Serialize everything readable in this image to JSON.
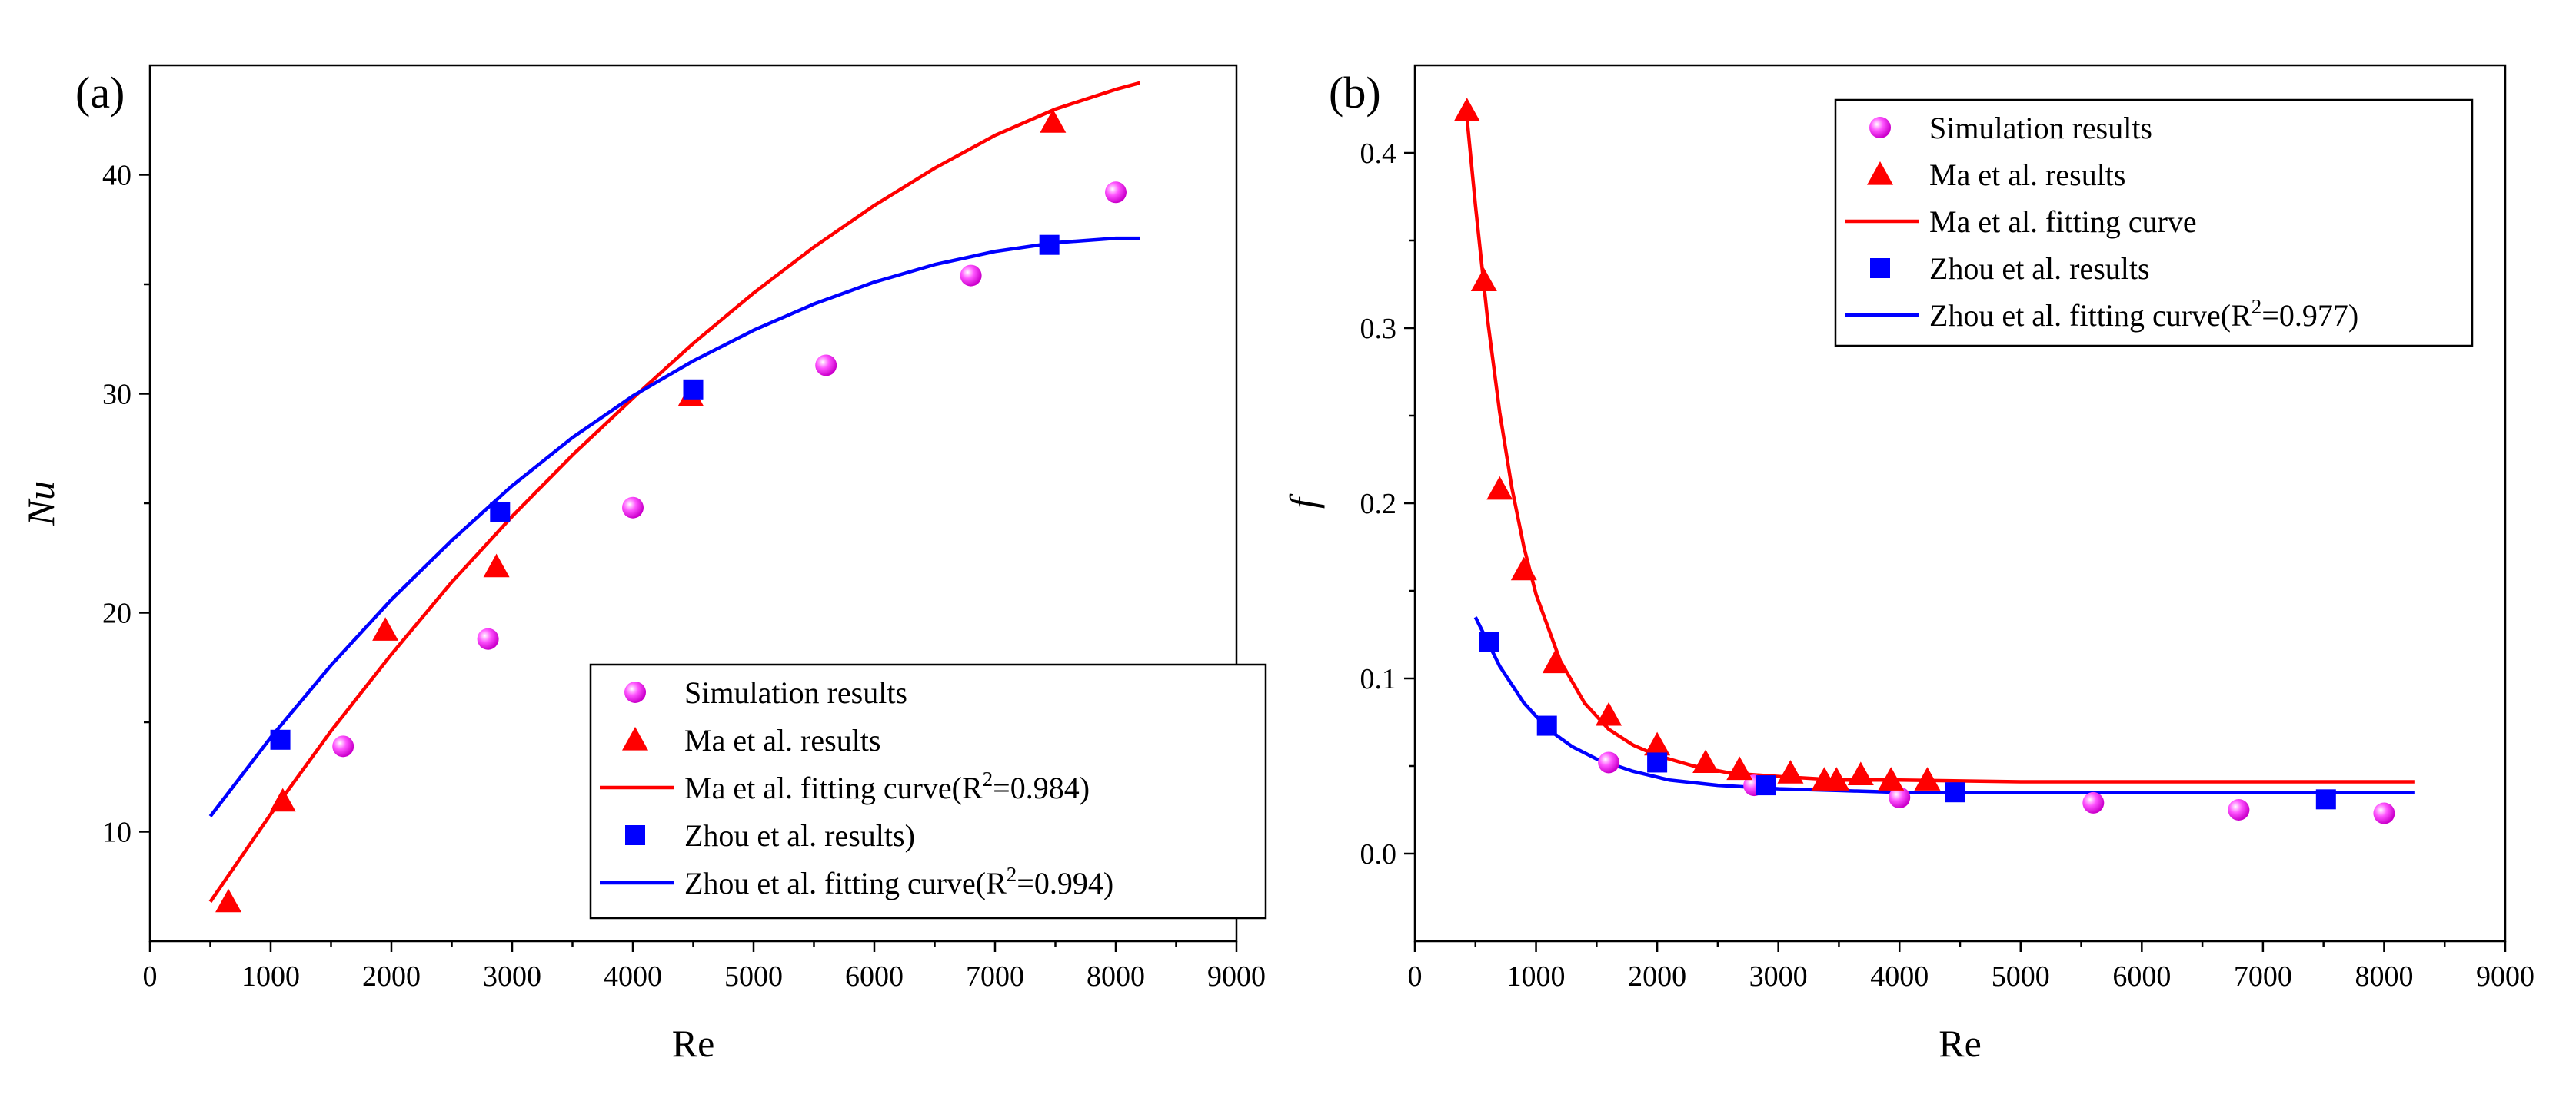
{
  "chart_data": [
    {
      "type": "scatter",
      "panel_label": "(a)",
      "xlabel": "Re",
      "ylabel": "Nu",
      "xlim": [
        0,
        9000
      ],
      "ylim": [
        5,
        45
      ],
      "xticks": [
        0,
        1000,
        2000,
        3000,
        4000,
        5000,
        6000,
        7000,
        8000,
        9000
      ],
      "yticks": [
        10,
        20,
        30,
        40
      ],
      "legend_position": "lower-right",
      "series": [
        {
          "name": "Simulation results",
          "kind": "points",
          "marker": "sphere",
          "color": "#ff33ff",
          "x": [
            1600,
            2800,
            4000,
            5600,
            6800,
            8000
          ],
          "y": [
            13.9,
            18.8,
            24.8,
            31.3,
            35.4,
            39.2
          ]
        },
        {
          "name": "Ma et al. results",
          "kind": "points",
          "marker": "triangle",
          "color": "#ff0000",
          "x": [
            650,
            1100,
            1950,
            2870,
            4480,
            7480
          ],
          "y": [
            6.8,
            11.4,
            19.2,
            22.1,
            29.9,
            42.4
          ]
        },
        {
          "name": "Ma et al. fitting curve(R",
          "name_sup": "2",
          "name_tail": "=0.984)",
          "kind": "line",
          "color": "#ff0000",
          "x": [
            500,
            1000,
            1500,
            2000,
            2500,
            3000,
            3500,
            4000,
            4500,
            5000,
            5500,
            6000,
            6500,
            7000,
            7500,
            8000,
            8200
          ],
          "y": [
            6.8,
            10.8,
            14.6,
            18.1,
            21.4,
            24.4,
            27.2,
            29.8,
            32.3,
            34.6,
            36.7,
            38.6,
            40.3,
            41.8,
            43.0,
            43.9,
            44.2
          ]
        },
        {
          "name": "Zhou et al. results)",
          "kind": "points",
          "marker": "square",
          "color": "#0000ff",
          "x": [
            1080,
            2900,
            4500,
            7450
          ],
          "y": [
            14.2,
            24.6,
            30.2,
            36.8
          ]
        },
        {
          "name": "Zhou et al. fitting curve(R",
          "name_sup": "2",
          "name_tail": "=0.994)",
          "kind": "line",
          "color": "#0000ff",
          "x": [
            500,
            1000,
            1500,
            2000,
            2500,
            3000,
            3500,
            4000,
            4500,
            5000,
            5500,
            6000,
            6500,
            7000,
            7500,
            8000,
            8200
          ],
          "y": [
            10.7,
            14.3,
            17.6,
            20.6,
            23.3,
            25.8,
            28.0,
            29.9,
            31.5,
            32.9,
            34.1,
            35.1,
            35.9,
            36.5,
            36.9,
            37.1,
            37.1
          ]
        }
      ]
    },
    {
      "type": "scatter",
      "panel_label": "(b)",
      "xlabel": "Re",
      "ylabel": "f",
      "xlim": [
        0,
        9000
      ],
      "ylim": [
        -0.05,
        0.45
      ],
      "xticks": [
        0,
        1000,
        2000,
        3000,
        4000,
        5000,
        6000,
        7000,
        8000,
        9000
      ],
      "yticks": [
        0.0,
        0.1,
        0.2,
        0.3,
        0.4
      ],
      "legend_position": "top-right",
      "series": [
        {
          "name": "Simulation results",
          "kind": "points",
          "marker": "sphere",
          "color": "#ff33ff",
          "x": [
            1600,
            2800,
            4000,
            5600,
            6800,
            8000
          ],
          "y": [
            0.052,
            0.039,
            0.032,
            0.029,
            0.025,
            0.023
          ]
        },
        {
          "name": "Ma et al. results",
          "kind": "points",
          "marker": "triangle",
          "color": "#ff0000",
          "x": [
            430,
            570,
            700,
            900,
            1160,
            1600,
            2000,
            2400,
            2680,
            3100,
            3380,
            3480,
            3680,
            3930,
            4230
          ],
          "y": [
            0.424,
            0.327,
            0.208,
            0.162,
            0.109,
            0.079,
            0.062,
            0.052,
            0.048,
            0.046,
            0.042,
            0.042,
            0.045,
            0.042,
            0.042
          ]
        },
        {
          "name": "Ma et al. fitting curve",
          "kind": "line",
          "color": "#ff0000",
          "x": [
            430,
            500,
            600,
            700,
            800,
            900,
            1000,
            1200,
            1400,
            1600,
            1800,
            2000,
            2300,
            2600,
            3000,
            3500,
            4000,
            5000,
            6000,
            7000,
            8250
          ],
          "y": [
            0.42,
            0.37,
            0.305,
            0.252,
            0.209,
            0.175,
            0.148,
            0.11,
            0.086,
            0.071,
            0.062,
            0.056,
            0.05,
            0.046,
            0.044,
            0.042,
            0.042,
            0.041,
            0.041,
            0.041,
            0.041
          ]
        },
        {
          "name": "Zhou et al. results",
          "kind": "points",
          "marker": "square",
          "color": "#0000ff",
          "x": [
            610,
            1090,
            2000,
            2900,
            4460,
            7520
          ],
          "y": [
            0.121,
            0.073,
            0.052,
            0.039,
            0.035,
            0.031
          ]
        },
        {
          "name": "Zhou et al. fitting curve(R",
          "name_sup": "2",
          "name_tail": "=0.977)",
          "kind": "line",
          "color": "#0000ff",
          "x": [
            500,
            700,
            900,
            1100,
            1300,
            1500,
            1800,
            2100,
            2500,
            3000,
            3500,
            4000,
            5000,
            6000,
            7000,
            8250
          ],
          "y": [
            0.135,
            0.107,
            0.086,
            0.071,
            0.061,
            0.054,
            0.047,
            0.042,
            0.039,
            0.037,
            0.036,
            0.035,
            0.035,
            0.035,
            0.035,
            0.035
          ]
        }
      ]
    }
  ]
}
